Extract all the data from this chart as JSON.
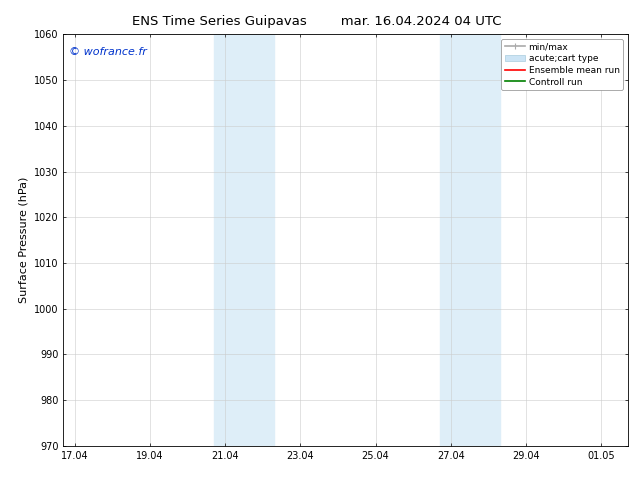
{
  "title_left": "ENS Time Series Guipavas",
  "title_right": "mar. 16.04.2024 04 UTC",
  "ylabel": "Surface Pressure (hPa)",
  "ylim": [
    970,
    1060
  ],
  "yticks": [
    970,
    980,
    990,
    1000,
    1010,
    1020,
    1030,
    1040,
    1050,
    1060
  ],
  "xtick_labels": [
    "17.04",
    "19.04",
    "21.04",
    "23.04",
    "25.04",
    "27.04",
    "29.04",
    "01.05"
  ],
  "xtick_positions": [
    0,
    2,
    4,
    6,
    8,
    10,
    12,
    14
  ],
  "shade_regions": [
    {
      "xmin": 3.7,
      "xmax": 5.3
    },
    {
      "xmin": 9.7,
      "xmax": 11.3
    }
  ],
  "shade_color": "#deeef8",
  "watermark_text": "© wofrance.fr",
  "watermark_color": "#0033cc",
  "legend_entries": [
    {
      "label": "min/max",
      "color": "#aaaaaa",
      "lw": 1.2
    },
    {
      "label": "acute;cart type",
      "color": "#cce4f5",
      "lw": 8
    },
    {
      "label": "Ensemble mean run",
      "color": "red",
      "lw": 1.2
    },
    {
      "label": "Controll run",
      "color": "green",
      "lw": 1.2
    }
  ],
  "xlim": [
    -0.3,
    14.7
  ],
  "grid_color": "#cccccc",
  "bg_color": "#ffffff",
  "title_fontsize": 9.5,
  "tick_fontsize": 7,
  "ylabel_fontsize": 8,
  "watermark_fontsize": 8,
  "legend_fontsize": 6.5
}
